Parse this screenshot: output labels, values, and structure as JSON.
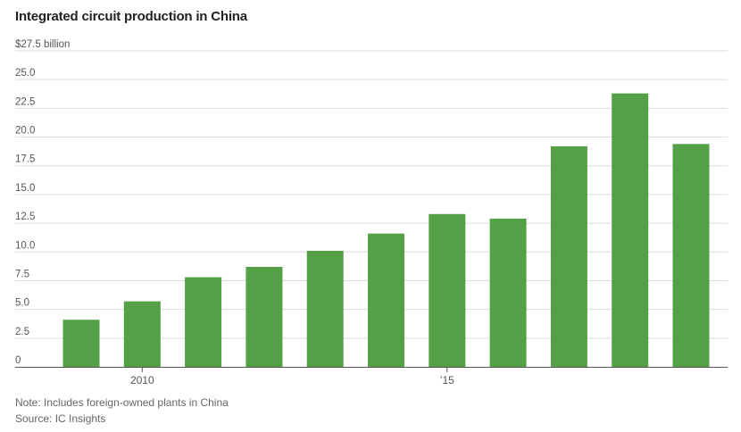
{
  "chart_data": {
    "type": "bar",
    "title": "Integrated circuit production in China",
    "ylabel": "",
    "xlabel": "",
    "ylim": [
      0,
      27.5
    ],
    "yticks": [
      {
        "value": 0,
        "label": "0"
      },
      {
        "value": 2.5,
        "label": "2.5"
      },
      {
        "value": 5,
        "label": "5.0"
      },
      {
        "value": 7.5,
        "label": "7.5"
      },
      {
        "value": 10,
        "label": "10.0"
      },
      {
        "value": 12.5,
        "label": "12.5"
      },
      {
        "value": 15,
        "label": "15.0"
      },
      {
        "value": 17.5,
        "label": "17.5"
      },
      {
        "value": 20,
        "label": "20.0"
      },
      {
        "value": 22.5,
        "label": "22.5"
      },
      {
        "value": 25,
        "label": "25.0"
      },
      {
        "value": 27.5,
        "label": "$27.5 billion"
      }
    ],
    "categories": [
      "2009",
      "2010",
      "2011",
      "2012",
      "2013",
      "2014",
      "2015",
      "2016",
      "2017",
      "2018",
      "2019"
    ],
    "values": [
      4.1,
      5.7,
      7.8,
      8.7,
      10.1,
      11.6,
      13.3,
      12.9,
      19.2,
      23.8,
      19.4
    ],
    "xtick_labels": [
      {
        "category": "2010",
        "label": "2010"
      },
      {
        "category": "2015",
        "label": "’15"
      }
    ],
    "grid": true,
    "bar_color": "#53a047"
  },
  "footer": {
    "note": "Note: Includes foreign-owned plants in China",
    "source": "Source: IC Insights"
  }
}
